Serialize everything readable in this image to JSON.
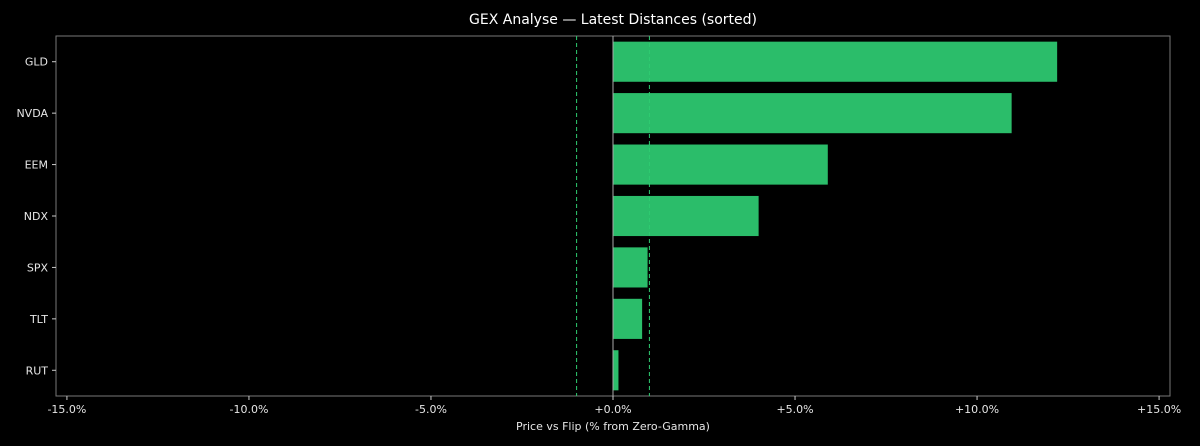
{
  "chart_data": {
    "type": "bar",
    "orientation": "horizontal",
    "title": "GEX Analyse — Latest Distances (sorted)",
    "xlabel": "Price vs Flip (% from Zero-Gamma)",
    "ylabel": "",
    "categories": [
      "GLD",
      "NVDA",
      "EEM",
      "NDX",
      "SPX",
      "TLT",
      "RUT"
    ],
    "values": [
      12.2,
      10.95,
      5.9,
      4.0,
      0.95,
      0.8,
      0.15
    ],
    "xlim": [
      -15.3,
      15.3
    ],
    "xticks": [
      -15,
      -10,
      -5,
      0,
      5,
      10,
      15
    ],
    "xtick_labels": [
      "-15.0%",
      "-10.0%",
      "-5.0%",
      "+0.0%",
      "+5.0%",
      "+10.0%",
      "+15.0%"
    ],
    "reference_lines": [
      {
        "x": -1.0,
        "style": "dashed",
        "color": "#2ecc71"
      },
      {
        "x": 1.0,
        "style": "dashed",
        "color": "#2ecc71"
      },
      {
        "x": 0.0,
        "style": "solid",
        "color": "#aaaaaa"
      }
    ],
    "bar_color": "#2bbd6a",
    "background": "#000000",
    "grid": false,
    "legend": "none"
  }
}
